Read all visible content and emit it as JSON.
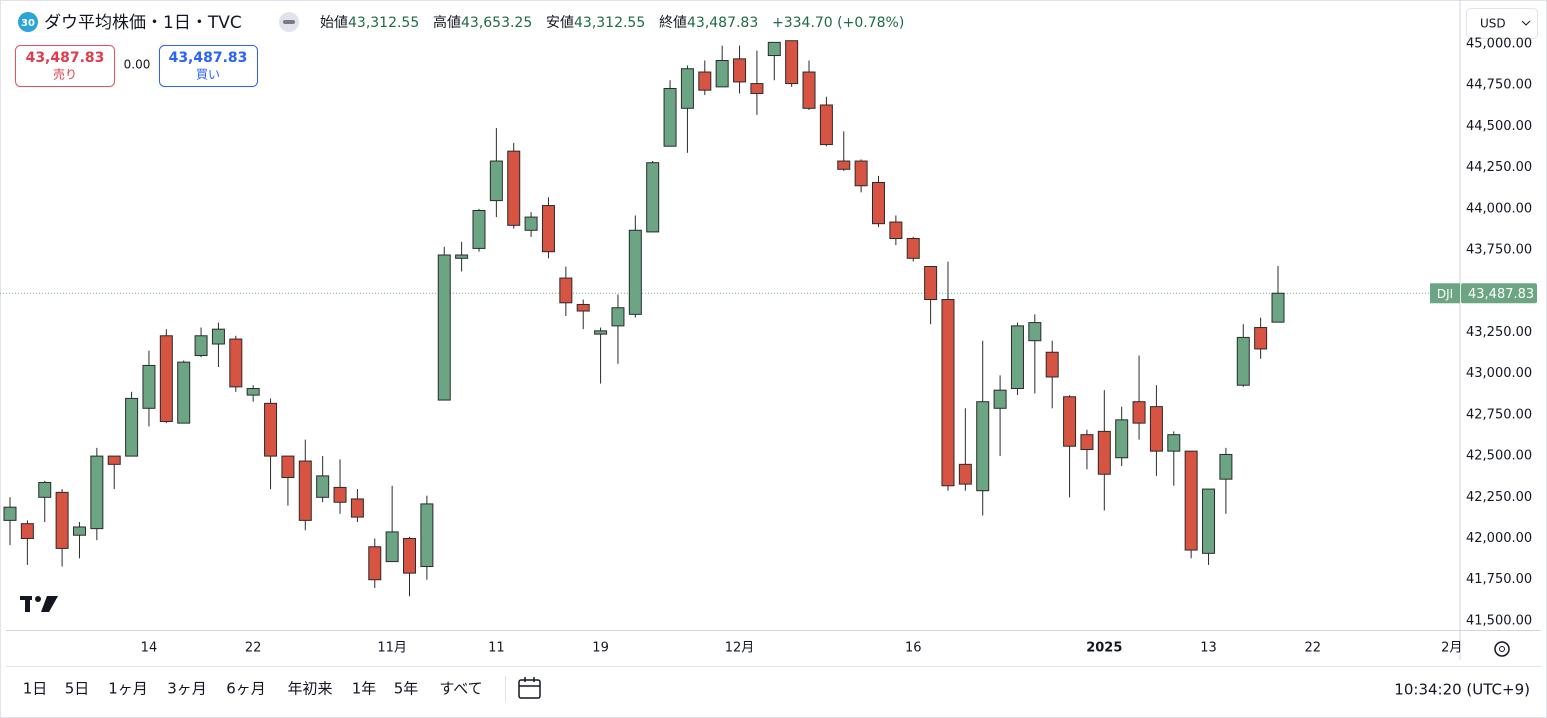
{
  "header": {
    "badge": "30",
    "symbol": "ダウ平均株価・1日・TVC",
    "ohlc": [
      {
        "label": "始値",
        "value": "43,312.55"
      },
      {
        "label": "高値",
        "value": "43,653.25"
      },
      {
        "label": "安値",
        "value": "43,312.55"
      },
      {
        "label": "終値",
        "value": "43,487.83"
      }
    ],
    "change": "+334.70 (+0.78%)"
  },
  "trade": {
    "sell_price": "43,487.83",
    "sell_label": "売り",
    "spread": "0.00",
    "buy_price": "43,487.83",
    "buy_label": "買い"
  },
  "currency": "USD",
  "chart_data": {
    "type": "candlestick",
    "categories": [
      null,
      null,
      null,
      null,
      null,
      null,
      null,
      null,
      "14",
      null,
      null,
      null,
      null,
      null,
      "22",
      null,
      null,
      null,
      null,
      null,
      null,
      null,
      "11月",
      null,
      null,
      null,
      null,
      null,
      "11",
      null,
      null,
      null,
      null,
      null,
      "19",
      null,
      null,
      null,
      null,
      null,
      null,
      null,
      "12月",
      null,
      null,
      null,
      null,
      null,
      null,
      null,
      null,
      null,
      "16",
      null,
      null,
      null,
      null,
      null,
      null,
      null,
      null,
      null,
      null,
      "2025",
      null,
      null,
      null,
      null,
      null,
      "13",
      null,
      null,
      null,
      null,
      null,
      "22",
      null,
      null,
      null,
      null,
      null,
      null,
      null,
      "2月"
    ],
    "series": [
      {
        "name": "DJI",
        "open": [
          42110,
          42090,
          42250,
          42280,
          42020,
          42060,
          42500,
          42500,
          42790,
          43230,
          42700,
          43110,
          43180,
          43210,
          42870,
          42820,
          42500,
          42470,
          42250,
          42310,
          42240,
          41950,
          41860,
          42000,
          41830,
          42840,
          43700,
          43760,
          44050,
          44350,
          43870,
          44020,
          43580,
          43420,
          43240,
          43290,
          43360,
          43860,
          44380,
          44610,
          44830,
          44740,
          44910,
          44760,
          44930,
          45020,
          44830,
          44630,
          44290,
          44290,
          44160,
          43920,
          43820,
          43650,
          43450,
          42450,
          42290,
          42790,
          42910,
          43200,
          43130,
          42860,
          42630,
          42650,
          42490,
          42830,
          42800,
          42530,
          42530,
          41910,
          42360,
          42930,
          43280,
          43312.55,
          null,
          null,
          null,
          null,
          null,
          null,
          null,
          null,
          null,
          null
        ],
        "high": [
          42250,
          42110,
          42350,
          42300,
          42100,
          42550,
          42500,
          42890,
          43140,
          43270,
          43080,
          43280,
          43310,
          43230,
          42930,
          42850,
          42500,
          42600,
          42500,
          42480,
          42300,
          42000,
          42320,
          42010,
          42260,
          43770,
          43800,
          44000,
          44490,
          44400,
          43980,
          44070,
          43650,
          43450,
          43280,
          43480,
          43960,
          44290,
          44780,
          44870,
          44900,
          44990,
          44990,
          44960,
          45010,
          45020,
          44900,
          44680,
          44470,
          44300,
          44200,
          43960,
          43830,
          43650,
          43680,
          42790,
          43200,
          42990,
          43310,
          43360,
          43200,
          42870,
          42660,
          42900,
          42800,
          43110,
          42930,
          42650,
          42530,
          42300,
          42550,
          43300,
          43340,
          43653.25,
          null,
          null,
          null,
          null,
          null,
          null,
          null,
          null,
          null,
          null
        ],
        "low": [
          41960,
          41840,
          42100,
          41830,
          41880,
          41990,
          42300,
          42500,
          42680,
          42700,
          42700,
          43100,
          43040,
          42890,
          42830,
          42300,
          42200,
          42050,
          42220,
          42150,
          42100,
          41700,
          41860,
          41650,
          41750,
          42840,
          43620,
          43740,
          43950,
          43880,
          43830,
          43700,
          43350,
          43270,
          42940,
          43060,
          43340,
          43860,
          44380,
          44340,
          44690,
          44740,
          44700,
          44570,
          44780,
          44740,
          44600,
          44380,
          44230,
          44100,
          43890,
          43780,
          43680,
          43300,
          42290,
          42290,
          42140,
          42500,
          42870,
          42880,
          42790,
          42250,
          42420,
          42170,
          42440,
          42600,
          42380,
          42320,
          41880,
          41840,
          42150,
          42920,
          43090,
          43312.55,
          null,
          null,
          null,
          null,
          null,
          null,
          null,
          null,
          null,
          null
        ],
        "close": [
          42190,
          42000,
          42340,
          41940,
          42070,
          42500,
          42450,
          42850,
          43050,
          42710,
          43070,
          43230,
          43270,
          42920,
          42910,
          42500,
          42370,
          42110,
          42380,
          42220,
          42130,
          41750,
          42040,
          41790,
          42210,
          43720,
          43720,
          43990,
          44290,
          43900,
          43950,
          43740,
          43430,
          43380,
          43260,
          43400,
          43870,
          44280,
          44730,
          44850,
          44720,
          44900,
          44770,
          44700,
          45010,
          44760,
          44610,
          44390,
          44240,
          44140,
          43910,
          43820,
          43700,
          43450,
          42320,
          42330,
          42830,
          42900,
          43290,
          43310,
          42980,
          42560,
          42540,
          42390,
          42720,
          42700,
          42530,
          42630,
          41930,
          42300,
          42510,
          43220,
          43150,
          43487.83,
          null,
          null,
          null,
          null,
          null,
          null,
          null,
          null,
          null,
          null
        ]
      }
    ],
    "up_color": "#6ba583",
    "down_color": "#d75442",
    "outline_color": "#2b2b2b",
    "ylim": [
      41445,
      45267
    ],
    "yticks": [
      {
        "value": 41500,
        "label": "41,500.00"
      },
      {
        "value": 41750,
        "label": "41,750.00"
      },
      {
        "value": 42000,
        "label": "42,000.00"
      },
      {
        "value": 42250,
        "label": "42,250.00"
      },
      {
        "value": 42500,
        "label": "42,500.00"
      },
      {
        "value": 42750,
        "label": "42,750.00"
      },
      {
        "value": 43000,
        "label": "43,000.00"
      },
      {
        "value": 43250,
        "label": "43,250.00"
      },
      {
        "value": 43500,
        "label": "43,500.00"
      },
      {
        "value": 43750,
        "label": "43,750.00"
      },
      {
        "value": 44000,
        "label": "44,000.00"
      },
      {
        "value": 44250,
        "label": "44,250.00"
      },
      {
        "value": 44500,
        "label": "44,500.00"
      },
      {
        "value": 44750,
        "label": "44,750.00"
      },
      {
        "value": 45000,
        "label": "45,000.00"
      }
    ],
    "grid": false,
    "last_price": {
      "value": 43487.83,
      "label": "43,487.83"
    }
  },
  "toolbar": {
    "ranges": [
      "1日",
      "5日",
      "1ヶ月",
      "3ヶ月",
      "6ヶ月",
      "年初来",
      "1年",
      "5年",
      "すべて"
    ],
    "time": "10:34:20 (UTC+9)"
  }
}
